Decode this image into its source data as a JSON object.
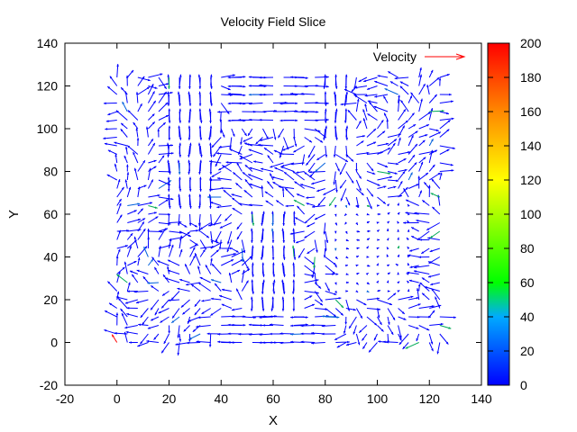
{
  "chart_data": {
    "type": "vector_field",
    "title": "Velocity Field Slice",
    "xlabel": "X",
    "ylabel": "Y",
    "xlim": [
      -20,
      140
    ],
    "ylim": [
      -20,
      140
    ],
    "xticks": [
      "-20",
      "0",
      "20",
      "40",
      "60",
      "80",
      "100",
      "120",
      "140"
    ],
    "yticks": [
      "-20",
      "0",
      "20",
      "40",
      "60",
      "80",
      "100",
      "120",
      "140"
    ],
    "legend": {
      "label": "Velocity",
      "color": "#ff0000",
      "placement": "top-right"
    },
    "colorbar": {
      "range": [
        0,
        200
      ],
      "ticks": [
        "0",
        "20",
        "40",
        "60",
        "80",
        "100",
        "120",
        "140",
        "160",
        "180",
        "200"
      ],
      "colormap": [
        "#0000ff",
        "#00aaff",
        "#00ff00",
        "#ffff00",
        "#ff8800",
        "#ff0000"
      ]
    },
    "grid": false,
    "grid_x_range": [
      0,
      124
    ],
    "grid_y_range": [
      0,
      124
    ],
    "grid_spacing": 4,
    "vector_length_scale_data_units": 6,
    "approximate_speed": "mostly 0-20 (blue), with a few vectors 40-60 (green) and one isolated vector near 200 (red) at origin"
  }
}
